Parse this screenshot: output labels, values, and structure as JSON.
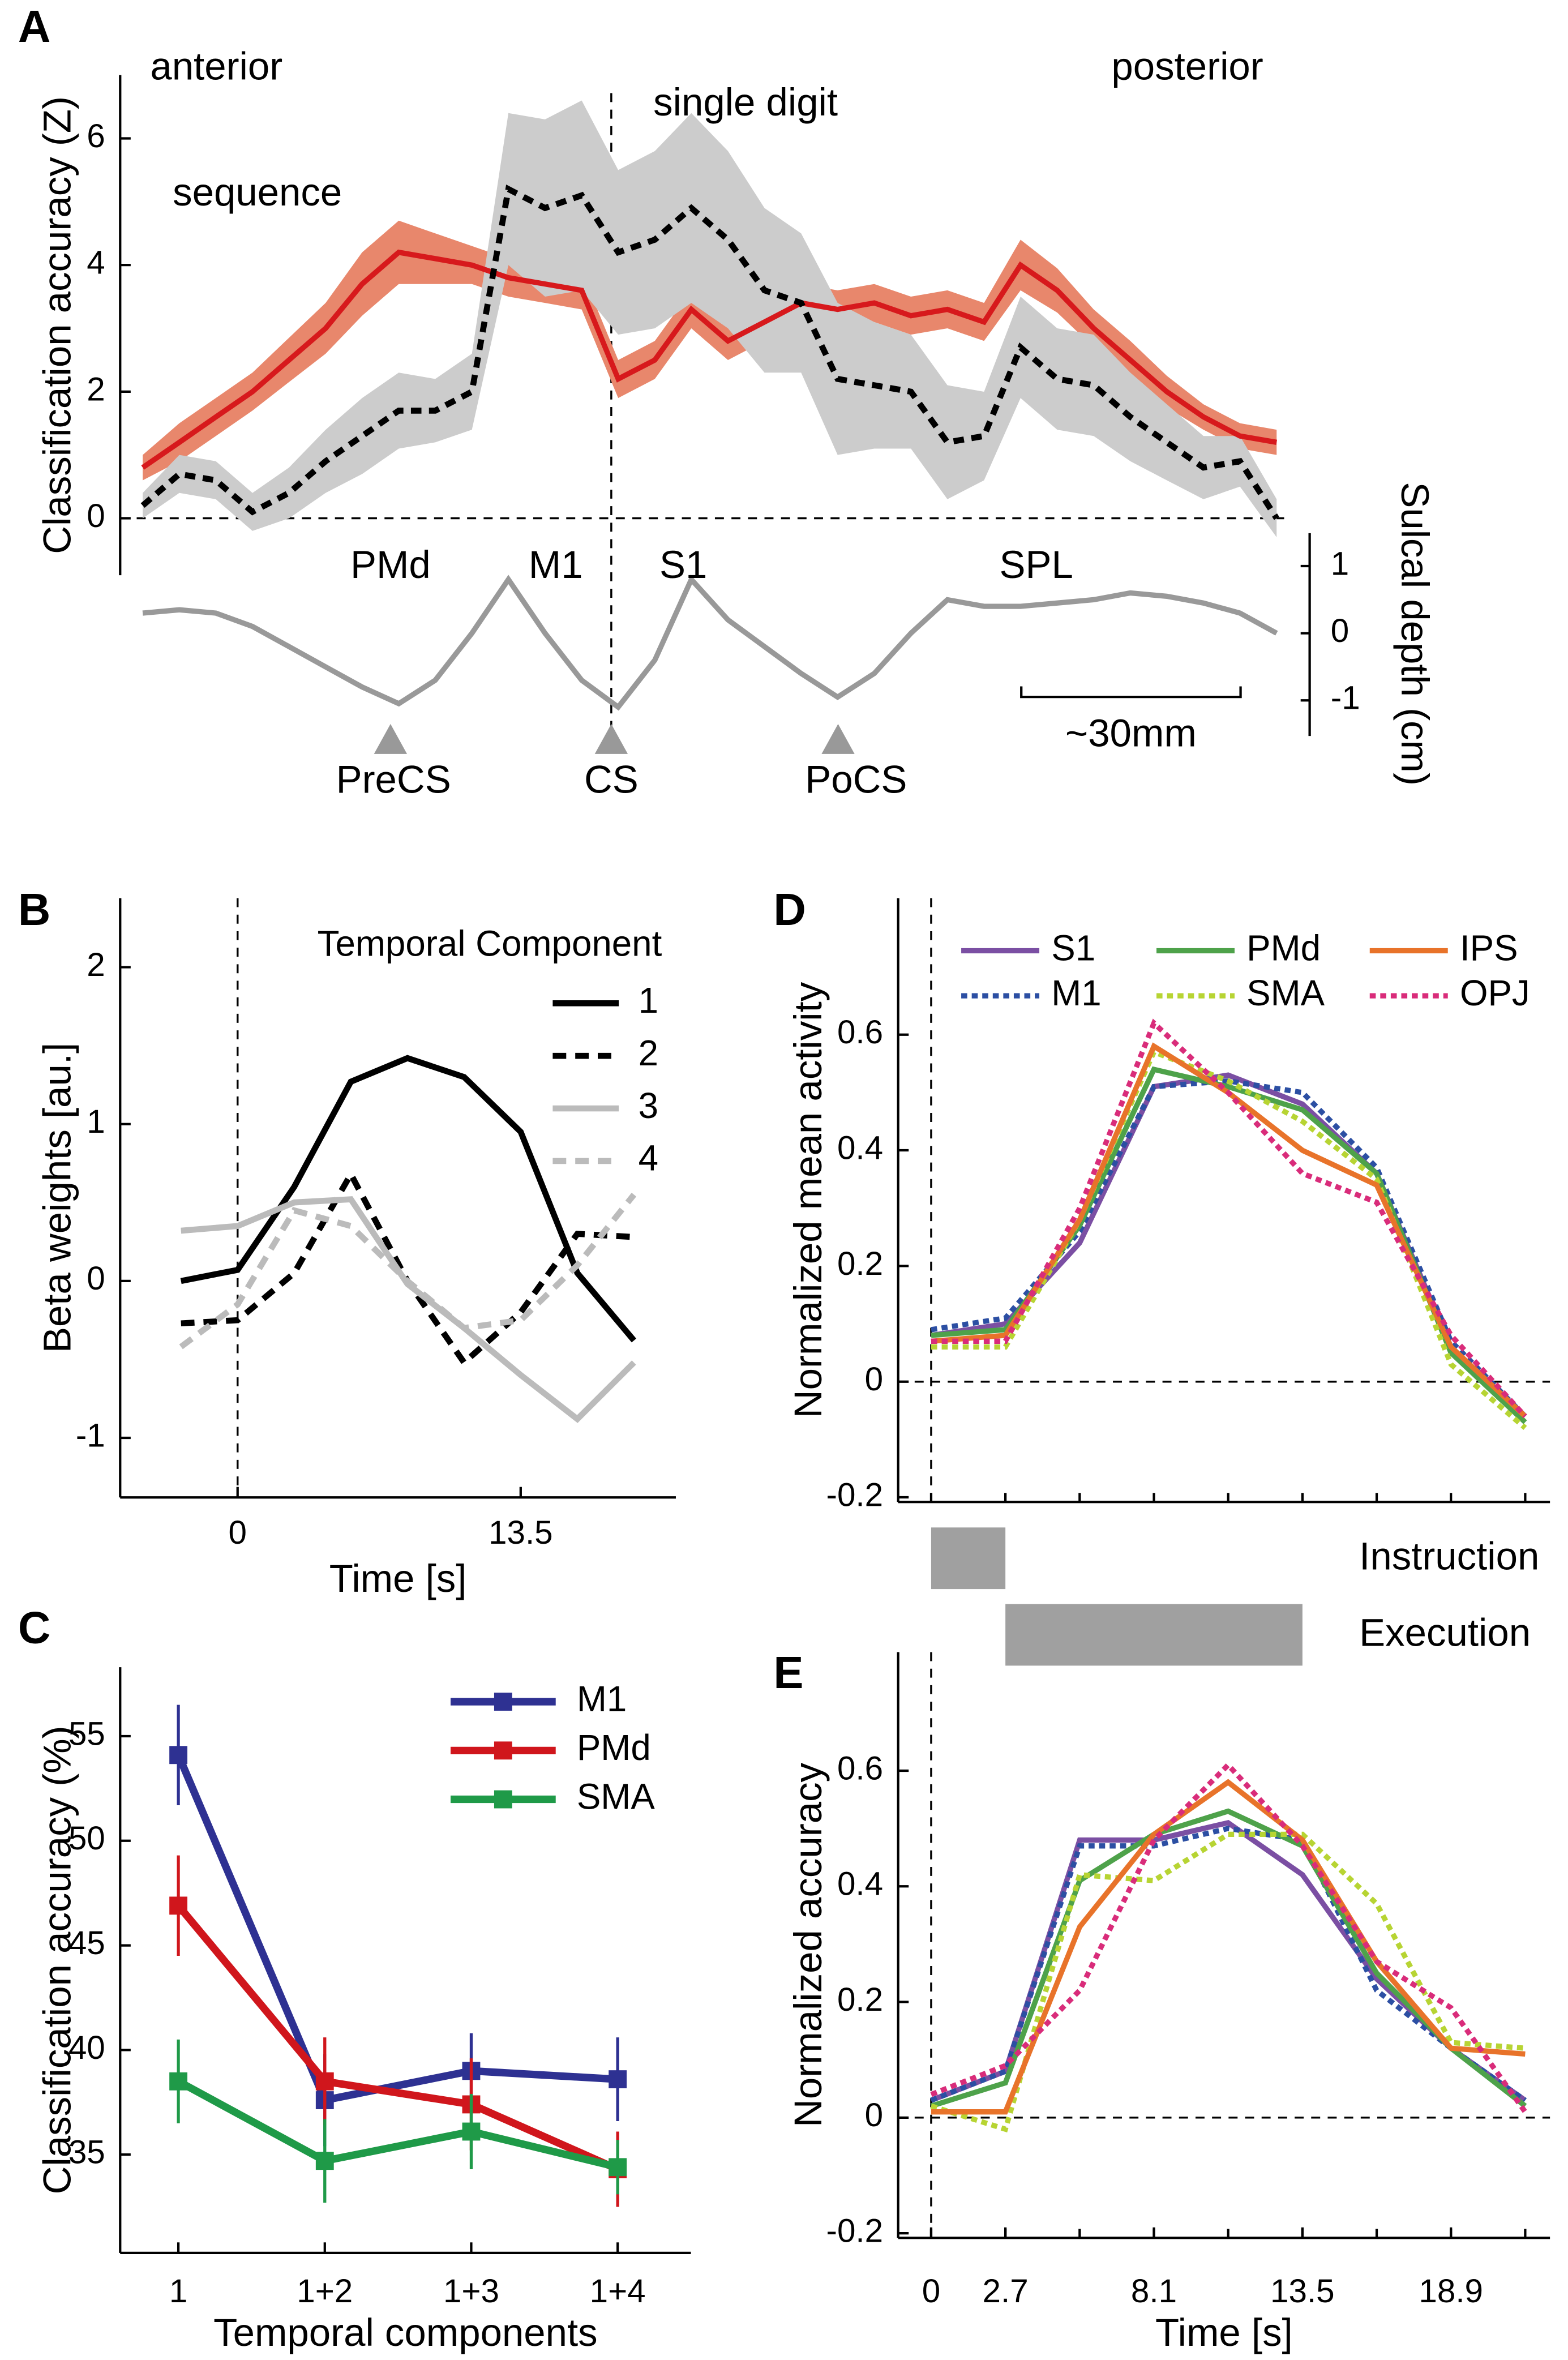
{
  "chart_data": [
    {
      "type": "band-line",
      "panel": "A",
      "ylabel": "Classification accuracy (Z)",
      "y2label": "Sulcal depth (cm)",
      "ylim": [
        -0.9,
        7.0
      ],
      "yticks": [
        0,
        2,
        4,
        6
      ],
      "y2lim": [
        -1.53,
        1.49
      ],
      "y2ticks": [
        -1,
        0,
        1
      ],
      "series": [
        {
          "name": "sequence",
          "color": "#d7191c",
          "band_color": "#e8876c",
          "values": [
            0.8,
            1.2,
            1.6,
            2.0,
            2.5,
            3.0,
            3.7,
            4.2,
            4.1,
            4.0,
            3.8,
            3.7,
            3.6,
            2.2,
            2.5,
            3.3,
            2.8,
            3.1,
            3.4,
            3.3,
            3.4,
            3.2,
            3.3,
            3.1,
            4.0,
            3.6,
            3.0,
            2.5,
            2.0,
            1.6,
            1.3,
            1.2
          ],
          "errors": [
            0.2,
            0.3,
            0.3,
            0.3,
            0.35,
            0.4,
            0.5,
            0.5,
            0.4,
            0.3,
            0.3,
            0.3,
            0.3,
            0.3,
            0.3,
            0.3,
            0.3,
            0.3,
            0.3,
            0.3,
            0.3,
            0.3,
            0.3,
            0.3,
            0.4,
            0.35,
            0.3,
            0.3,
            0.25,
            0.2,
            0.2,
            0.2
          ]
        },
        {
          "name": "single digit",
          "color": "#000000",
          "band_color": "#cccccc",
          "dash": true,
          "values": [
            0.2,
            0.7,
            0.6,
            0.1,
            0.4,
            0.9,
            1.3,
            1.7,
            1.7,
            2.0,
            5.2,
            4.9,
            5.1,
            4.2,
            4.4,
            4.9,
            4.4,
            3.6,
            3.4,
            2.2,
            2.1,
            2.0,
            1.2,
            1.3,
            2.7,
            2.2,
            2.1,
            1.6,
            1.2,
            0.8,
            0.9,
            0.0
          ],
          "errors": [
            0.2,
            0.3,
            0.3,
            0.3,
            0.4,
            0.5,
            0.6,
            0.6,
            0.5,
            0.6,
            1.2,
            1.4,
            1.5,
            1.3,
            1.4,
            1.5,
            1.4,
            1.3,
            1.1,
            1.2,
            1.0,
            0.9,
            0.9,
            0.7,
            0.8,
            0.8,
            0.8,
            0.7,
            0.6,
            0.5,
            0.4,
            0.3
          ]
        },
        {
          "axis": "y2",
          "color": "#999999",
          "values": [
            0.3,
            0.35,
            0.3,
            0.1,
            -0.2,
            -0.5,
            -0.8,
            -1.05,
            -0.7,
            0.0,
            0.8,
            0.0,
            -0.7,
            -1.1,
            -0.4,
            0.8,
            0.2,
            -0.2,
            -0.6,
            -0.95,
            -0.6,
            0.0,
            0.5,
            0.4,
            0.4,
            0.45,
            0.5,
            0.6,
            0.55,
            0.45,
            0.3,
            0.0
          ]
        }
      ],
      "annotations": [
        "anterior",
        "posterior",
        "PMd",
        "M1",
        "S1",
        "SPL",
        "PreCS",
        "CS",
        "PoCS",
        "~30mm"
      ]
    },
    {
      "type": "line",
      "panel": "B",
      "xlabel": "Time [s]",
      "ylabel": "Beta weights [au.]",
      "legend_title": "Temporal Component",
      "x": [
        -2.7,
        0,
        2.7,
        5.4,
        8.1,
        10.8,
        13.5,
        16.2,
        18.9
      ],
      "xlim": [
        -5.6,
        20.9
      ],
      "xticks": [
        0,
        13.5
      ],
      "ylim": [
        -1.38,
        2.44
      ],
      "yticks": [
        -1,
        0,
        1,
        2
      ],
      "series": [
        {
          "name": "1",
          "color": "#000000",
          "values": [
            0,
            0.07,
            0.6,
            1.27,
            1.42,
            1.3,
            0.95,
            0.05,
            -0.38
          ]
        },
        {
          "name": "2",
          "color": "#000000",
          "dash": true,
          "values": [
            -0.27,
            -0.25,
            0.05,
            0.68,
            0.0,
            -0.52,
            -0.2,
            0.3,
            0.28
          ]
        },
        {
          "name": "3",
          "color": "#bbbbbb",
          "values": [
            0.32,
            0.35,
            0.5,
            0.52,
            -0.02,
            -0.3,
            -0.6,
            -0.88,
            -0.52
          ]
        },
        {
          "name": "4",
          "color": "#bbbbbb",
          "dash": true,
          "values": [
            -0.42,
            -0.15,
            0.45,
            0.35,
            0.0,
            -0.3,
            -0.25,
            0.1,
            0.55
          ]
        }
      ]
    },
    {
      "type": "line-errorbar",
      "panel": "C",
      "xlabel": "Temporal components",
      "ylabel": "Classification accuracy (%)",
      "categories": [
        "1",
        "1+2",
        "1+3",
        "1+4"
      ],
      "ylim": [
        30.3,
        58.3
      ],
      "yticks": [
        35,
        40,
        45,
        50,
        55
      ],
      "series": [
        {
          "name": "M1",
          "color": "#2e3192",
          "values": [
            54.1,
            37.6,
            39.0,
            38.6
          ],
          "errors": [
            2.4,
            2.2,
            1.8,
            2.0
          ]
        },
        {
          "name": "PMd",
          "color": "#d0161c",
          "values": [
            46.9,
            38.5,
            37.4,
            34.3
          ],
          "errors": [
            2.4,
            2.1,
            2.2,
            1.8
          ]
        },
        {
          "name": "SMA",
          "color": "#1f9a48",
          "values": [
            38.5,
            34.7,
            36.1,
            34.4
          ],
          "errors": [
            2.0,
            2.0,
            1.8,
            1.3
          ]
        }
      ]
    },
    {
      "type": "line",
      "panel": "D",
      "ylabel": "Normalized mean activity",
      "x": [
        0,
        2.7,
        5.4,
        8.1,
        10.8,
        13.5,
        16.2,
        18.9,
        21.6
      ],
      "xlim": [
        -1.2,
        22.5
      ],
      "ylim": [
        -0.208,
        0.836
      ],
      "yticks": [
        -0.2,
        0,
        0.2,
        0.4,
        0.6
      ],
      "series": [
        {
          "name": "S1",
          "color": "#7b4fa3",
          "values": [
            0.08,
            0.1,
            0.24,
            0.51,
            0.53,
            0.48,
            0.36,
            0.06,
            -0.06
          ]
        },
        {
          "name": "M1",
          "color": "#2c4fa3",
          "dash": true,
          "values": [
            0.09,
            0.11,
            0.26,
            0.51,
            0.52,
            0.5,
            0.37,
            0.07,
            -0.06
          ]
        },
        {
          "name": "PMd",
          "color": "#4ea24a",
          "values": [
            0.08,
            0.09,
            0.27,
            0.54,
            0.51,
            0.47,
            0.36,
            0.05,
            -0.07
          ]
        },
        {
          "name": "SMA",
          "color": "#b7d433",
          "dash": true,
          "values": [
            0.06,
            0.06,
            0.28,
            0.57,
            0.52,
            0.45,
            0.35,
            0.03,
            -0.08
          ]
        },
        {
          "name": "IPS",
          "color": "#e8732a",
          "values": [
            0.07,
            0.08,
            0.28,
            0.58,
            0.5,
            0.4,
            0.34,
            0.06,
            -0.06
          ]
        },
        {
          "name": "OPJ",
          "color": "#d92c7a",
          "dash": true,
          "values": [
            0.07,
            0.07,
            0.3,
            0.62,
            0.5,
            0.36,
            0.31,
            0.08,
            -0.06
          ]
        }
      ]
    },
    {
      "type": "line",
      "panel": "E",
      "xlabel": "Time [s]",
      "ylabel": "Normalized accuracy",
      "x": [
        0,
        2.7,
        5.4,
        8.1,
        10.8,
        13.5,
        16.2,
        18.9,
        21.6
      ],
      "xlim": [
        -1.2,
        22.5
      ],
      "xticks": [
        0,
        2.7,
        8.1,
        13.5,
        18.9
      ],
      "ylim": [
        -0.208,
        0.805
      ],
      "yticks": [
        -0.2,
        0,
        0.2,
        0.4,
        0.6
      ],
      "events": [
        {
          "label": "Instruction",
          "start": 0,
          "end": 2.7
        },
        {
          "label": "Execution",
          "start": 2.7,
          "end": 13.5
        }
      ],
      "series": [
        {
          "color": "#7b4fa3",
          "values": [
            0.03,
            0.08,
            0.48,
            0.48,
            0.51,
            0.42,
            0.24,
            0.12,
            0.03
          ]
        },
        {
          "color": "#2c4fa3",
          "dash": true,
          "values": [
            0.03,
            0.08,
            0.47,
            0.47,
            0.5,
            0.48,
            0.22,
            0.12,
            0.03
          ]
        },
        {
          "color": "#4ea24a",
          "values": [
            0.02,
            0.06,
            0.41,
            0.49,
            0.53,
            0.47,
            0.25,
            0.12,
            0.02
          ]
        },
        {
          "color": "#b7d433",
          "dash": true,
          "values": [
            0.02,
            -0.02,
            0.42,
            0.41,
            0.49,
            0.49,
            0.37,
            0.13,
            0.12
          ]
        },
        {
          "color": "#e8732a",
          "values": [
            0.01,
            0.01,
            0.33,
            0.49,
            0.58,
            0.48,
            0.27,
            0.12,
            0.11
          ]
        },
        {
          "color": "#d92c7a",
          "dash": true,
          "values": [
            0.04,
            0.09,
            0.22,
            0.48,
            0.61,
            0.47,
            0.27,
            0.19,
            0.01
          ]
        }
      ]
    }
  ]
}
